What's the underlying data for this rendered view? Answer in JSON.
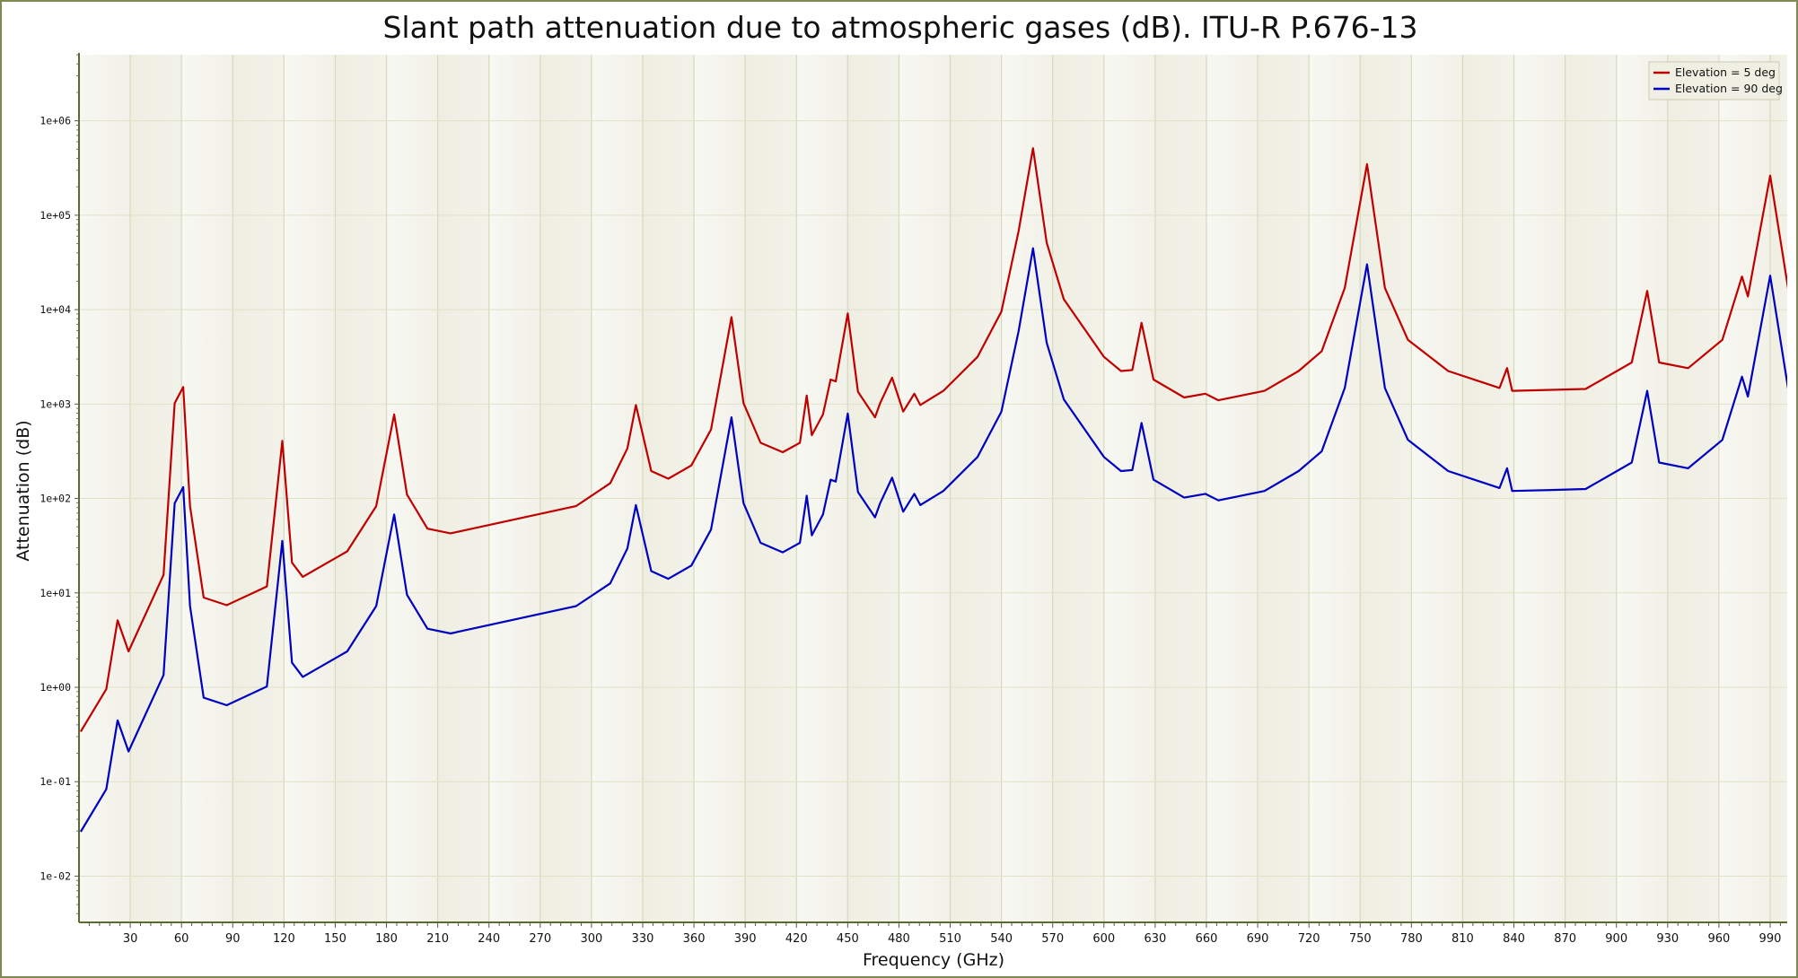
{
  "chart_data": {
    "type": "line",
    "title": "Slant path attenuation due to atmospheric gases (dB). ITU-R P.676-13",
    "xlabel": "Frequency (GHz)",
    "ylabel": "Attenuation (dB)",
    "xlim": [
      0,
      1000
    ],
    "ylim_log10": [
      -2.49,
      6.7
    ],
    "yscale": "log",
    "grid": true,
    "legend_position": "top-right",
    "x_ticks": [
      "30",
      "60",
      "90",
      "120",
      "150",
      "180",
      "210",
      "240",
      "270",
      "300",
      "330",
      "360",
      "390",
      "420",
      "450",
      "480",
      "510",
      "540",
      "570",
      "600",
      "630",
      "660",
      "690",
      "720",
      "750",
      "780",
      "810",
      "840",
      "870",
      "900",
      "930",
      "960",
      "990"
    ],
    "y_ticks": [
      "1e-02",
      "1e-01",
      "1e+00",
      "1e+01",
      "1e+02",
      "1e+03",
      "1e+04",
      "1e+05",
      "1e+06"
    ],
    "x": [
      1,
      16,
      22.6,
      29,
      49.5,
      56,
      61,
      65,
      73,
      86.5,
      110,
      119,
      124.7,
      131,
      157,
      174,
      184.5,
      192,
      204,
      217.5,
      291,
      311,
      321,
      326,
      335,
      345,
      358.5,
      370,
      382,
      389,
      399,
      412,
      422,
      426,
      429,
      435.5,
      440,
      443,
      450,
      456,
      466,
      469,
      476,
      482.5,
      489,
      492.5,
      506,
      526,
      540,
      550,
      558.5,
      566.5,
      576.5,
      600,
      610,
      616.6,
      622,
      629,
      647,
      659.4,
      667,
      694,
      714,
      727.5,
      741,
      754,
      764.5,
      778,
      801.5,
      831.6,
      836,
      839,
      862,
      882,
      909,
      918,
      925,
      942,
      962,
      973.5,
      977,
      990,
      1001
    ],
    "series": [
      {
        "name": "Elevation = 5 deg",
        "color": "#c00000",
        "values": [
          0.339,
          0.955,
          5.13,
          2.4,
          15.5,
          1023,
          1514,
          83,
          8.91,
          7.41,
          11.7,
          407,
          20.9,
          14.8,
          27.5,
          83,
          776,
          110,
          47.9,
          42.7,
          83.2,
          145,
          339,
          977,
          195,
          162,
          224,
          537,
          8318,
          1023,
          389,
          309,
          389,
          1230,
          468,
          776,
          1820,
          1738,
          9120,
          1349,
          724,
          1023,
          1905,
          832,
          1288,
          977,
          1380,
          3162,
          9550,
          67600,
          513000,
          51300,
          12900,
          3162,
          2239,
          2291,
          7244,
          1820,
          1175,
          1288,
          1096,
          1380,
          2239,
          3631,
          17000,
          347000,
          17000,
          4786,
          2239,
          1479,
          2399,
          1380,
          1413,
          1445,
          2754,
          15800,
          2754,
          2399,
          4786,
          22400,
          13800,
          263000,
          14800
        ]
      },
      {
        "name": "Elevation = 90 deg",
        "color": "#0000c0",
        "values": [
          0.0295,
          0.0832,
          0.447,
          0.209,
          1.35,
          89,
          132,
          7.24,
          0.776,
          0.646,
          1.02,
          35.5,
          1.82,
          1.29,
          2.4,
          7.24,
          67.6,
          9.55,
          4.17,
          3.72,
          7.24,
          12.6,
          29.5,
          85.1,
          17.0,
          14.1,
          19.5,
          46.8,
          724,
          89.1,
          33.9,
          26.9,
          33.9,
          107,
          40.7,
          67.6,
          158,
          151,
          794,
          117,
          63.1,
          89.1,
          166,
          72.4,
          112,
          85.1,
          120,
          275,
          832,
          5890,
          44700,
          4470,
          1120,
          275,
          195,
          200,
          631,
          158,
          102,
          112,
          95.5,
          120,
          195,
          316,
          1480,
          30200,
          1480,
          417,
          195,
          129,
          209,
          120,
          123,
          126,
          240,
          1380,
          240,
          209,
          417,
          1950,
          1200,
          22900,
          1290
        ]
      }
    ]
  }
}
